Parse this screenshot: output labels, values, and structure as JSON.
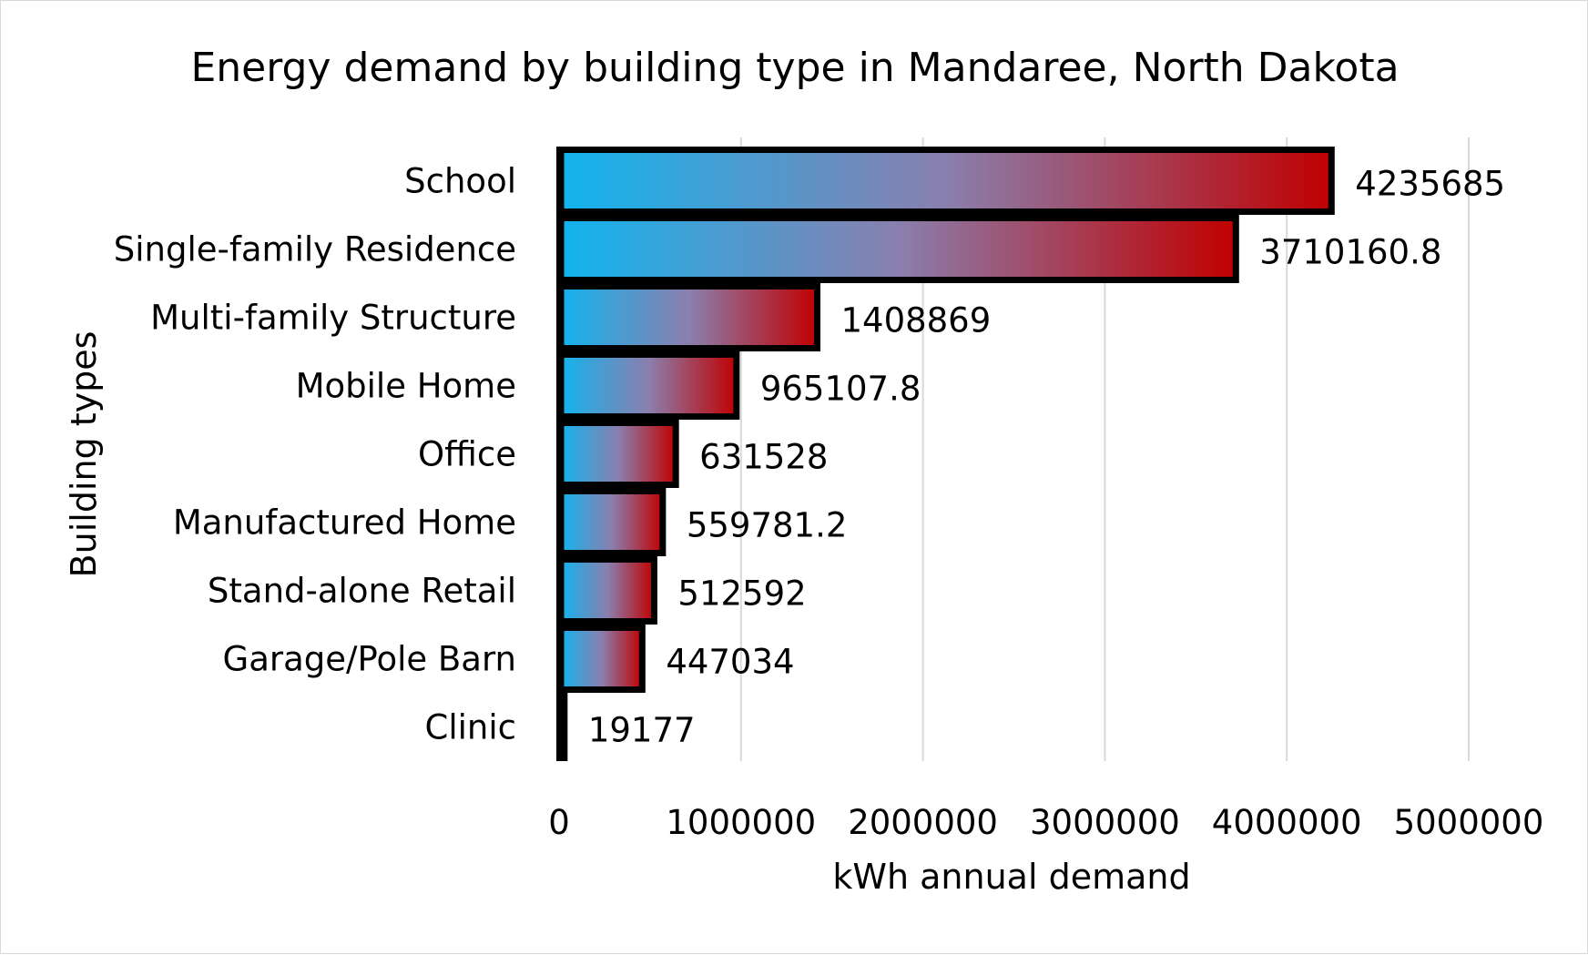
{
  "chart_data": {
    "type": "bar",
    "orientation": "horizontal",
    "title": "Energy demand by building type in Mandaree, North Dakota",
    "xlabel": "kWh annual demand",
    "ylabel": "Building types",
    "categories": [
      "School",
      "Single-family Residence",
      "Multi-family Structure",
      "Mobile Home",
      "Office",
      "Manufactured Home",
      "Stand-alone Retail",
      "Garage/Pole Barn",
      "Clinic"
    ],
    "values": [
      4235685,
      3710160.8,
      1408869,
      965107.8,
      631528,
      559781.2,
      512592,
      447034,
      19177
    ],
    "data_labels": [
      "4235685",
      "3710160.8",
      "1408869",
      "965107.8",
      "631528",
      "559781.2",
      "512592",
      "447034",
      "19177"
    ],
    "xlim": [
      0,
      5000000
    ],
    "xticks": [
      "0",
      "1000000",
      "2000000",
      "3000000",
      "4000000",
      "5000000"
    ],
    "grid": "vertical",
    "legend": "none",
    "colors": {
      "bar_gradient_start": "#12b4ee",
      "bar_gradient_mid": "#8a7fae",
      "bar_gradient_end": "#c00000",
      "bar_border": "#000000",
      "gridline": "#d9d9d9"
    }
  }
}
